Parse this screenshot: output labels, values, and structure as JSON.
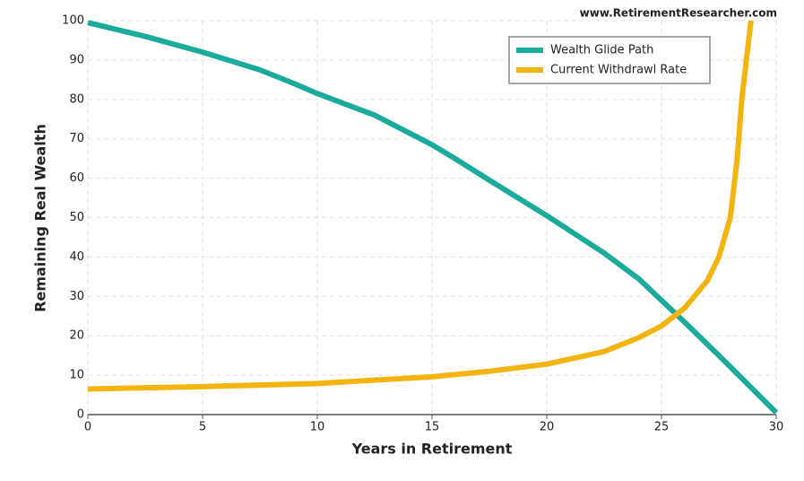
{
  "chart_data": {
    "type": "line",
    "watermark": "www.RetirementResearcher.com",
    "x_label": "Years in Retirement",
    "y_label": "Remaining Real Wealth",
    "series": [
      {
        "name": "Wealth Glide Path",
        "color": "#1aab9b",
        "x": [
          0,
          2.5,
          5,
          7.5,
          9,
          10,
          12.5,
          15,
          16,
          17.5,
          20,
          22.5,
          24,
          25,
          26,
          27.5,
          30
        ],
        "values": [
          99.5,
          96,
          92,
          87.5,
          84,
          81.5,
          76,
          68.5,
          65,
          59.5,
          50.5,
          41,
          34.5,
          29,
          23.5,
          15,
          0.5
        ]
      },
      {
        "name": "Current Withdrawl Rate",
        "color": "#f3b40f",
        "x": [
          0,
          5,
          10,
          15,
          17.5,
          20,
          22.5,
          24,
          25,
          26,
          27,
          27.5,
          28,
          28.3,
          28.5,
          28.9
        ],
        "values": [
          6.5,
          7.1,
          7.9,
          9.6,
          11,
          12.8,
          16,
          19.5,
          22.5,
          27,
          34,
          40,
          50,
          65,
          80,
          100
        ]
      }
    ],
    "xlim": [
      0,
      30
    ],
    "xticks": [
      0,
      5,
      10,
      15,
      20,
      25,
      30
    ],
    "ylim": [
      0,
      100
    ],
    "yticks": [
      0,
      10,
      20,
      30,
      40,
      50,
      60,
      70,
      80,
      90,
      100
    ],
    "grid": true,
    "legend": "upper right"
  }
}
